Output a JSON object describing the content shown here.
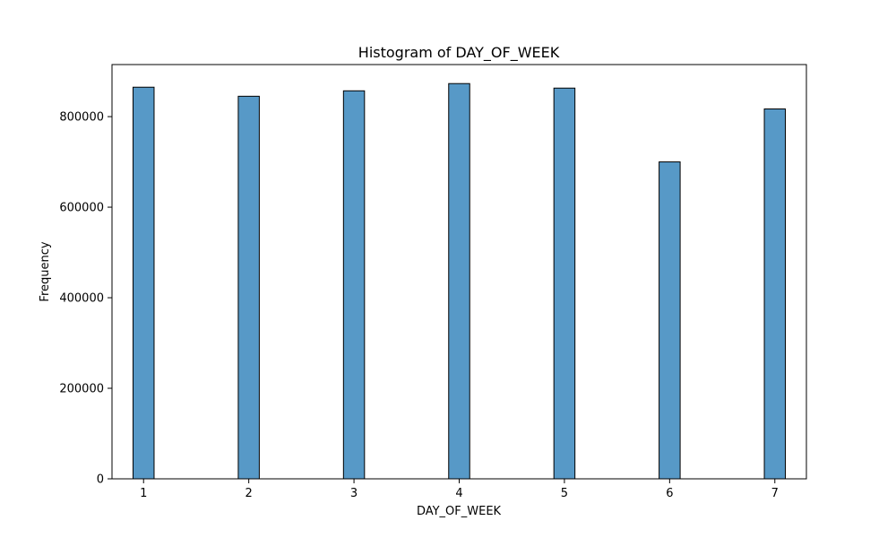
{
  "chart_data": {
    "type": "bar",
    "title": "Histogram of DAY_OF_WEEK",
    "xlabel": "DAY_OF_WEEK",
    "ylabel": "Frequency",
    "xlim": [
      0.7,
      7.3
    ],
    "ylim": [
      0,
      915000
    ],
    "x_ticks": [
      "1",
      "2",
      "3",
      "4",
      "5",
      "6",
      "7"
    ],
    "y_ticks": [
      "0",
      "200000",
      "400000",
      "600000",
      "800000"
    ],
    "bin_width": 0.2,
    "bars": [
      {
        "x": 1,
        "value": 865000
      },
      {
        "x": 2,
        "value": 845000
      },
      {
        "x": 3,
        "value": 857000
      },
      {
        "x": 4,
        "value": 873000
      },
      {
        "x": 5,
        "value": 863000
      },
      {
        "x": 6,
        "value": 700000
      },
      {
        "x": 7,
        "value": 817000
      }
    ],
    "bar_color": "#5799c7",
    "edge_color": "#000000",
    "grid": false
  }
}
